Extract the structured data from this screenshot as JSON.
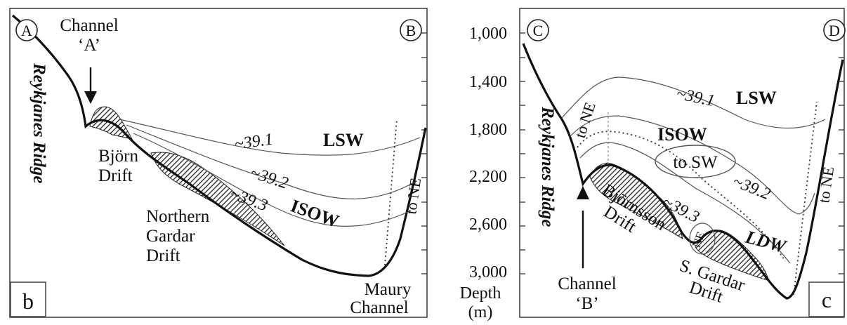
{
  "panel_b": {
    "label": "b",
    "corner_left": "A",
    "corner_right": "B",
    "ridge_label": "Reykjanes Ridge",
    "channel_label_line1": "Channel",
    "channel_label_line2": "‘A’",
    "drift1_line1": "Björn",
    "drift1_line2": "Drift",
    "drift2_line1": "Northern",
    "drift2_line2": "Gardar",
    "drift2_line3": "Drift",
    "water_upper": "LSW",
    "water_lower": "ISOW",
    "iso_1": "~39.1",
    "iso_2": "~39.2",
    "iso_3": "~39.3",
    "flow_label": "to NE",
    "channel2_line1": "Maury",
    "channel2_line2": "Channel"
  },
  "panel_c": {
    "label": "c",
    "corner_left": "C",
    "corner_right": "D",
    "ridge_label": "Reykjanes Ridge",
    "channel_label_line1": "Channel",
    "channel_label_line2": "‘B’",
    "drift1_line1": "Björnsson",
    "drift1_line2": "Drift",
    "drift2_line1": "S. Gardar",
    "drift2_line2": "Drift",
    "water_upper": "LSW",
    "water_mid": "ISOW",
    "water_lower": "LDW",
    "flow_sw": "to SW",
    "flow_ne_left": "to NE",
    "flow_ne_right": "to NE",
    "flow_ne_small": "NE",
    "iso_1": "~39.1",
    "iso_2": "~39.2",
    "iso_3": "~39.3"
  },
  "depth_axis": {
    "ticks": [
      "1,000",
      "1,400",
      "1,800",
      "2,200",
      "2,600",
      "3,000"
    ],
    "title_line1": "Depth",
    "title_line2": "(m)"
  }
}
